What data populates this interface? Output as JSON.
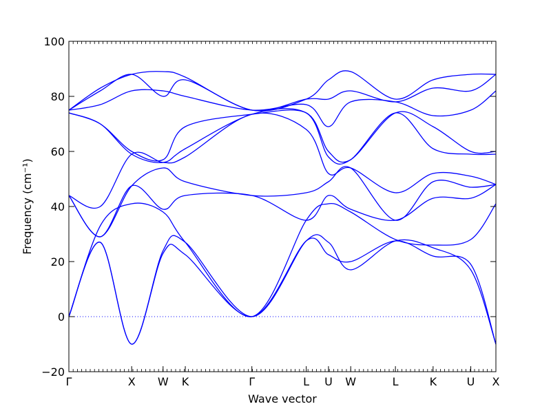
{
  "chart_data": {
    "type": "line",
    "title": "",
    "xlabel": "Wave vector",
    "ylabel": "Frequency (cm⁻¹)",
    "ylim": [
      -20,
      100
    ],
    "yticks": [
      -20,
      0,
      20,
      40,
      60,
      80,
      100
    ],
    "grid": false,
    "legend": "none",
    "line_color": "#0000ff",
    "zero_line_color": "#0000ff",
    "path_labels": [
      "Γ",
      "X",
      "W",
      "K",
      "Γ",
      "L",
      "U",
      "W",
      "L",
      "K",
      "U",
      "X"
    ],
    "path_positions": [
      0,
      1,
      1.5,
      1.854,
      2.914,
      3.78,
      4.134,
      4.488,
      5.2,
      5.8,
      6.4,
      6.8
    ],
    "series": [
      {
        "x": [
          0,
          0.5,
          1,
          1.5,
          1.854,
          2.914,
          3.78,
          4.134,
          4.488,
          5.2,
          5.8,
          6.4,
          6.8
        ],
        "y": [
          0,
          27,
          -10,
          23,
          22.5,
          0,
          27.5,
          22.5,
          20,
          27.5,
          22,
          19,
          -10
        ]
      },
      {
        "x": [
          0,
          0.5,
          1,
          1.5,
          1.854,
          2.914,
          3.78,
          4.134,
          4.488,
          5.2,
          5.8,
          6.4,
          6.8
        ],
        "y": [
          0,
          27,
          -10,
          24,
          27,
          0,
          27.5,
          27,
          17,
          27.5,
          25,
          17,
          -10
        ]
      },
      {
        "x": [
          0,
          0.5,
          1,
          1.5,
          1.854,
          2.914,
          3.78,
          4.134,
          4.488,
          5.2,
          5.8,
          6.4,
          6.8
        ],
        "y": [
          0,
          33,
          41,
          38,
          27,
          0,
          35,
          41,
          38,
          28,
          26,
          28,
          41
        ]
      },
      {
        "x": [
          0,
          0.5,
          1,
          1.5,
          1.854,
          2.914,
          3.78,
          4.134,
          4.488,
          5.2,
          5.8,
          6.4,
          6.8
        ],
        "y": [
          44,
          29,
          47.5,
          39,
          44,
          44,
          35,
          44,
          39,
          35,
          43,
          43,
          48
        ]
      },
      {
        "x": [
          0,
          0.5,
          1,
          1.5,
          1.854,
          2.914,
          3.78,
          4.134,
          4.488,
          5.2,
          5.8,
          6.4,
          6.8
        ],
        "y": [
          44,
          29,
          47.5,
          54,
          49,
          44,
          45,
          49,
          54,
          35,
          49,
          47,
          48
        ]
      },
      {
        "x": [
          0,
          0.5,
          1,
          1.5,
          1.854,
          2.914,
          3.78,
          4.134,
          4.488,
          5.2,
          5.8,
          6.4,
          6.8
        ],
        "y": [
          44,
          40,
          59,
          56,
          58,
          73.5,
          68,
          52,
          54,
          45,
          52,
          51,
          48
        ]
      },
      {
        "x": [
          0,
          0.5,
          1,
          1.5,
          1.854,
          2.914,
          3.78,
          4.134,
          4.488,
          5.2,
          5.8,
          6.4,
          6.8
        ],
        "y": [
          74,
          70,
          59,
          56,
          61,
          73.5,
          74,
          58,
          57,
          74,
          61,
          59,
          59
        ]
      },
      {
        "x": [
          0,
          0.5,
          1,
          1.5,
          1.854,
          2.914,
          3.78,
          4.134,
          4.488,
          5.2,
          5.8,
          6.4,
          6.8
        ],
        "y": [
          74,
          70,
          60,
          57,
          69,
          73.5,
          74,
          60,
          57,
          74,
          69,
          60,
          60
        ]
      },
      {
        "x": [
          0,
          0.5,
          1,
          1.5,
          1.854,
          2.914,
          3.78,
          4.134,
          4.488,
          5.2,
          5.8,
          6.4,
          6.8
        ],
        "y": [
          75,
          77,
          82,
          82,
          80,
          75,
          77,
          69,
          78,
          78,
          73,
          75,
          82
        ]
      },
      {
        "x": [
          0,
          0.5,
          1,
          1.5,
          1.854,
          2.914,
          3.78,
          4.134,
          4.488,
          5.2,
          5.8,
          6.4,
          6.8
        ],
        "y": [
          75,
          82,
          88,
          80,
          86,
          75,
          79,
          79,
          82,
          78,
          83,
          82,
          88
        ]
      },
      {
        "x": [
          0,
          0.5,
          1,
          1.5,
          1.854,
          2.914,
          3.78,
          4.134,
          4.488,
          5.2,
          5.8,
          6.4,
          6.8
        ],
        "y": [
          75,
          83,
          88,
          89,
          87,
          75,
          79,
          86,
          89,
          79,
          86,
          88,
          88
        ]
      }
    ]
  }
}
